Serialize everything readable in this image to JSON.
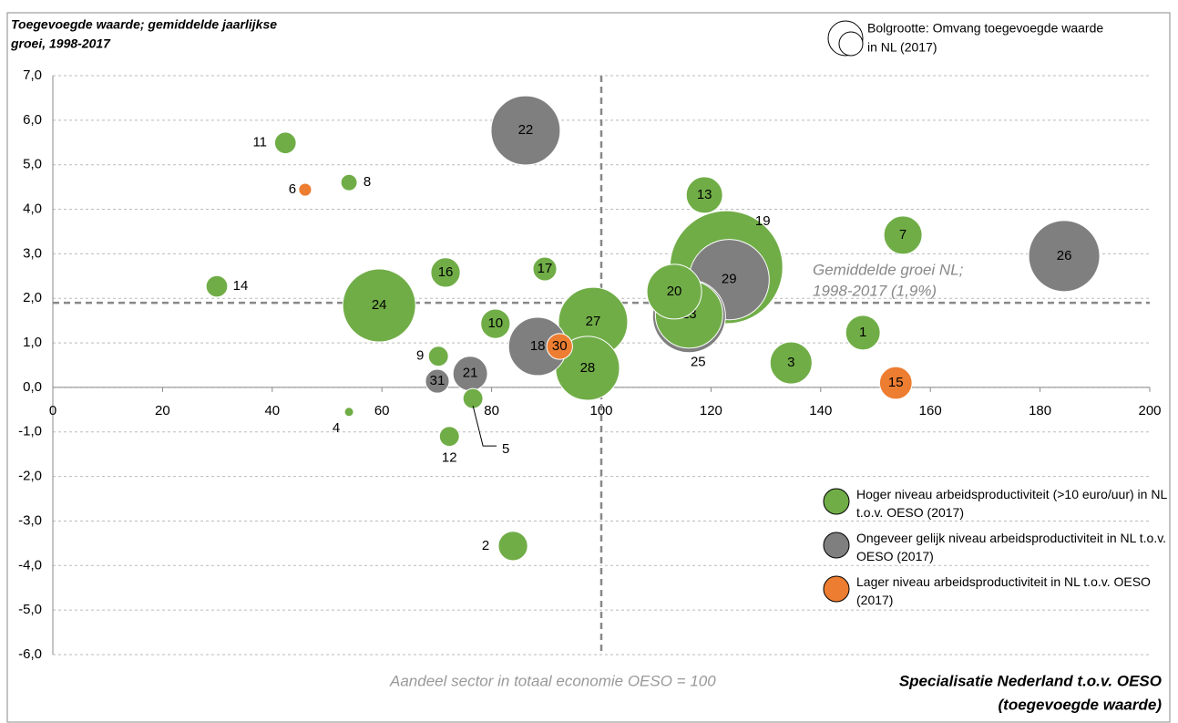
{
  "chart_data": {
    "type": "bubble",
    "y_label": [
      "Toegevoegde waarde; gemiddelde jaarlijkse",
      "groei, 1998-2017"
    ],
    "size_note": [
      "Bolgrootte: Omvang toegevoegde waarde",
      "in NL (2017)"
    ],
    "x_label": [
      "Specialisatie Nederland t.o.v. OESO",
      "(toegevoegde waarde)"
    ],
    "annotations": {
      "average": [
        "Gemiddelde groei NL;",
        "1998-2017 (1,9%)"
      ],
      "reference": "Aandeel sector in totaal economie OESO = 100"
    },
    "reference_x": 100,
    "reference_y": 1.9,
    "xlim": [
      0,
      200
    ],
    "xticks": [
      0,
      20,
      40,
      60,
      80,
      100,
      120,
      140,
      160,
      180,
      200
    ],
    "ylim": [
      -6,
      7
    ],
    "yticks": [
      {
        "value": -6,
        "label": "-6,0"
      },
      {
        "value": -5,
        "label": "-5,0"
      },
      {
        "value": -4,
        "label": "-4,0"
      },
      {
        "value": -3,
        "label": "-3,0"
      },
      {
        "value": -2,
        "label": "-2,0"
      },
      {
        "value": -1,
        "label": "-1,0"
      },
      {
        "value": 0,
        "label": "0,0"
      },
      {
        "value": 1,
        "label": "1,0"
      },
      {
        "value": 2,
        "label": "2,0"
      },
      {
        "value": 3,
        "label": "3,0"
      },
      {
        "value": 4,
        "label": "4,0"
      },
      {
        "value": 5,
        "label": "5,0"
      },
      {
        "value": 6,
        "label": "6,0"
      },
      {
        "value": 7,
        "label": "7,0"
      }
    ],
    "grid": true,
    "series": [
      {
        "name": "Hoger niveau arbeidsproductiviteit (>10 euro/uur) in NL t.o.v. OESO (2017)",
        "color": "#70ad47",
        "labels": [
          "1",
          "2",
          "3",
          "4",
          "5",
          "7",
          "8",
          "9",
          "10",
          "11",
          "12",
          "13",
          "14",
          "16",
          "17",
          "19",
          "20",
          "23",
          "24",
          "27",
          "28"
        ],
        "x": [
          147.7,
          83.9,
          134.6,
          54,
          76.6,
          155,
          54,
          70.3,
          80.7,
          42.4,
          72.3,
          118.8,
          29.9,
          71.6,
          89.7,
          122.8,
          113.3,
          116,
          59.5,
          98.5,
          97.5
        ],
        "values": [
          1.23,
          -3.56,
          0.55,
          -0.55,
          -0.25,
          3.42,
          4.6,
          0.7,
          1.43,
          5.49,
          -1.1,
          4.32,
          2.27,
          2.58,
          2.66,
          2.7,
          2.15,
          1.64,
          1.84,
          1.47,
          0.43
        ],
        "sizes": [
          36,
          26,
          53,
          2.5,
          12,
          44,
          8,
          12,
          26,
          14,
          12,
          40,
          14,
          26,
          17,
          384,
          90,
          137,
          160,
          144,
          123
        ]
      },
      {
        "name": "Ongeveer gelijk niveau arbeidsproductiviteit in NL t.o.v. OESO (2017)",
        "color": "#7f7f7f",
        "labels": [
          "18",
          "21",
          "22",
          "25",
          "26",
          "29",
          "31"
        ],
        "x": [
          88.4,
          76.1,
          86.2,
          116,
          184.4,
          123.3,
          70.1
        ],
        "values": [
          0.92,
          0.31,
          5.77,
          1.6,
          2.95,
          2.42,
          0.14
        ],
        "sizes": [
          102,
          36,
          144,
          160,
          152,
          194,
          17
        ]
      },
      {
        "name": "Lager niveau arbeidsproductiviteit in NL t.o.v. OESO (2017)",
        "color": "#ed7d31",
        "labels": [
          "6",
          "15",
          "30"
        ],
        "x": [
          46,
          153.7,
          92.4
        ],
        "values": [
          4.44,
          0.1,
          0.92
        ],
        "sizes": [
          5,
          32,
          20
        ]
      }
    ]
  }
}
